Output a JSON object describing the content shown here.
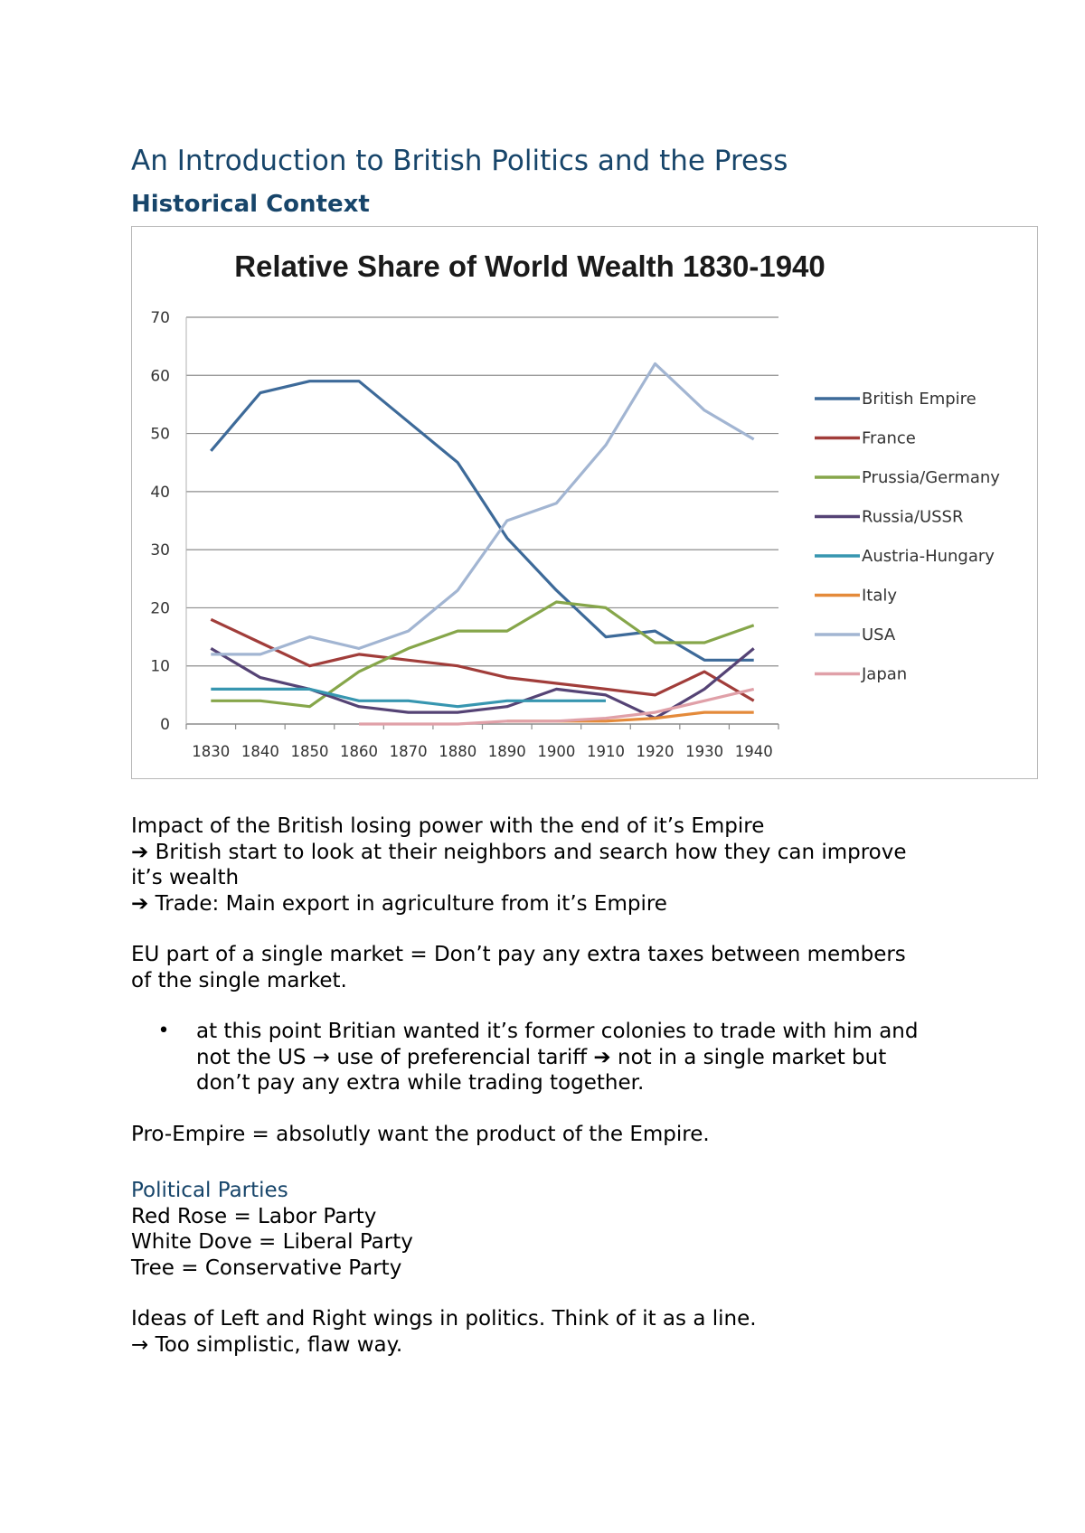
{
  "document": {
    "title": "An Introduction to British Politics and the Press",
    "section1": "Historical Context",
    "para1": [
      "Impact of the British losing power with the end of it’s Empire",
      "➔ British start to look at their neighbors and search how they can improve",
      "it’s wealth",
      "➔ Trade: Main export in agriculture from it’s Empire"
    ],
    "para2": [
      "EU part of a single market = Don’t pay any extra taxes between members",
      "of the single market."
    ],
    "bullet": {
      "marker": "•",
      "lines": [
        "at this point Britian wanted it’s former colonies to trade with him and",
        "not the US → use of preferencial tariff ➔ not in a single market but",
        "don’t pay any extra while trading together."
      ]
    },
    "para3": "Pro-Empire = absolutly want the product of the Empire.",
    "section2": "Political Parties",
    "parties": [
      "Red Rose = Labor Party",
      "White Dove = Liberal Party",
      "Tree = Conservative Party"
    ],
    "para4": [
      "Ideas of Left and Right wings in politics. Think of it as a line.",
      "→ Too simplistic, flaw way."
    ]
  },
  "chart_data": {
    "type": "line",
    "title": "Relative Share of World Wealth 1830-1940",
    "xlabel": "",
    "ylabel": "",
    "ylim": [
      0,
      70
    ],
    "yticks": [
      0,
      10,
      20,
      30,
      40,
      50,
      60,
      70
    ],
    "grid": true,
    "legend_position": "right",
    "x": [
      1830,
      1840,
      1850,
      1860,
      1870,
      1880,
      1890,
      1900,
      1910,
      1920,
      1930,
      1940
    ],
    "series": [
      {
        "name": "British Empire",
        "color": "#3d6a99",
        "values": [
          47,
          57,
          59,
          59,
          52,
          45,
          32,
          23,
          15,
          16,
          11,
          11
        ]
      },
      {
        "name": "France",
        "color": "#a13d3a",
        "values": [
          18,
          14,
          10,
          12,
          11,
          10,
          8,
          7,
          6,
          5,
          9,
          4
        ]
      },
      {
        "name": "Prussia/Germany",
        "color": "#86a64a",
        "values": [
          4,
          4,
          3,
          9,
          13,
          16,
          16,
          21,
          20,
          14,
          14,
          17
        ]
      },
      {
        "name": "Russia/USSR",
        "color": "#554375",
        "values": [
          13,
          8,
          6,
          3,
          2,
          2,
          3,
          6,
          5,
          1,
          6,
          13
        ]
      },
      {
        "name": "Austria-Hungary",
        "color": "#3796b0",
        "values": [
          6,
          6,
          6,
          4,
          4,
          3,
          4,
          4,
          4,
          null,
          null,
          null
        ]
      },
      {
        "name": "Italy",
        "color": "#e48a3a",
        "values": [
          null,
          null,
          null,
          null,
          null,
          null,
          0.5,
          0.5,
          0.5,
          1,
          2,
          2
        ]
      },
      {
        "name": "USA",
        "color": "#a2b5d2",
        "values": [
          12,
          12,
          15,
          13,
          16,
          23,
          35,
          38,
          48,
          62,
          54,
          49
        ]
      },
      {
        "name": "Japan",
        "color": "#e0a0a8",
        "values": [
          null,
          null,
          null,
          0,
          0,
          0,
          0.5,
          0.5,
          1,
          2,
          4,
          6
        ]
      }
    ]
  }
}
